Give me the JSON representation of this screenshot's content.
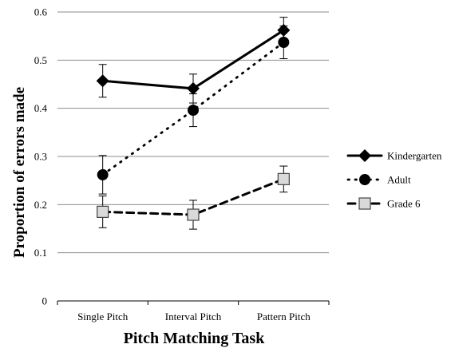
{
  "chart_data": {
    "type": "line",
    "categories": [
      "Single Pitch",
      "Interval Pitch",
      "Pattern Pitch"
    ],
    "xlabel": "Pitch Matching Task",
    "ylabel": "Proportion of errors made",
    "ylim": [
      0,
      0.6
    ],
    "yticks": [
      "0",
      "0.1",
      "0.2",
      "0.3",
      "0.4",
      "0.5",
      "0.6"
    ],
    "grid": true,
    "legend_position": "right",
    "series": [
      {
        "name": "Kindergarten",
        "values": [
          0.457,
          0.441,
          0.562
        ],
        "errors": [
          0.034,
          0.03,
          0.027
        ],
        "marker": "diamond",
        "line": "solid",
        "color": "#000000"
      },
      {
        "name": "Adult",
        "values": [
          0.262,
          0.396,
          0.537
        ],
        "errors": [
          0.04,
          0.034,
          0.034
        ],
        "marker": "circle",
        "line": "dotted",
        "color": "#000000"
      },
      {
        "name": "Grade 6",
        "values": [
          0.185,
          0.179,
          0.253
        ],
        "errors": [
          0.033,
          0.03,
          0.027
        ],
        "marker": "square",
        "line": "dashed",
        "color": "#000000",
        "fill": "#d9d9d9"
      }
    ]
  }
}
